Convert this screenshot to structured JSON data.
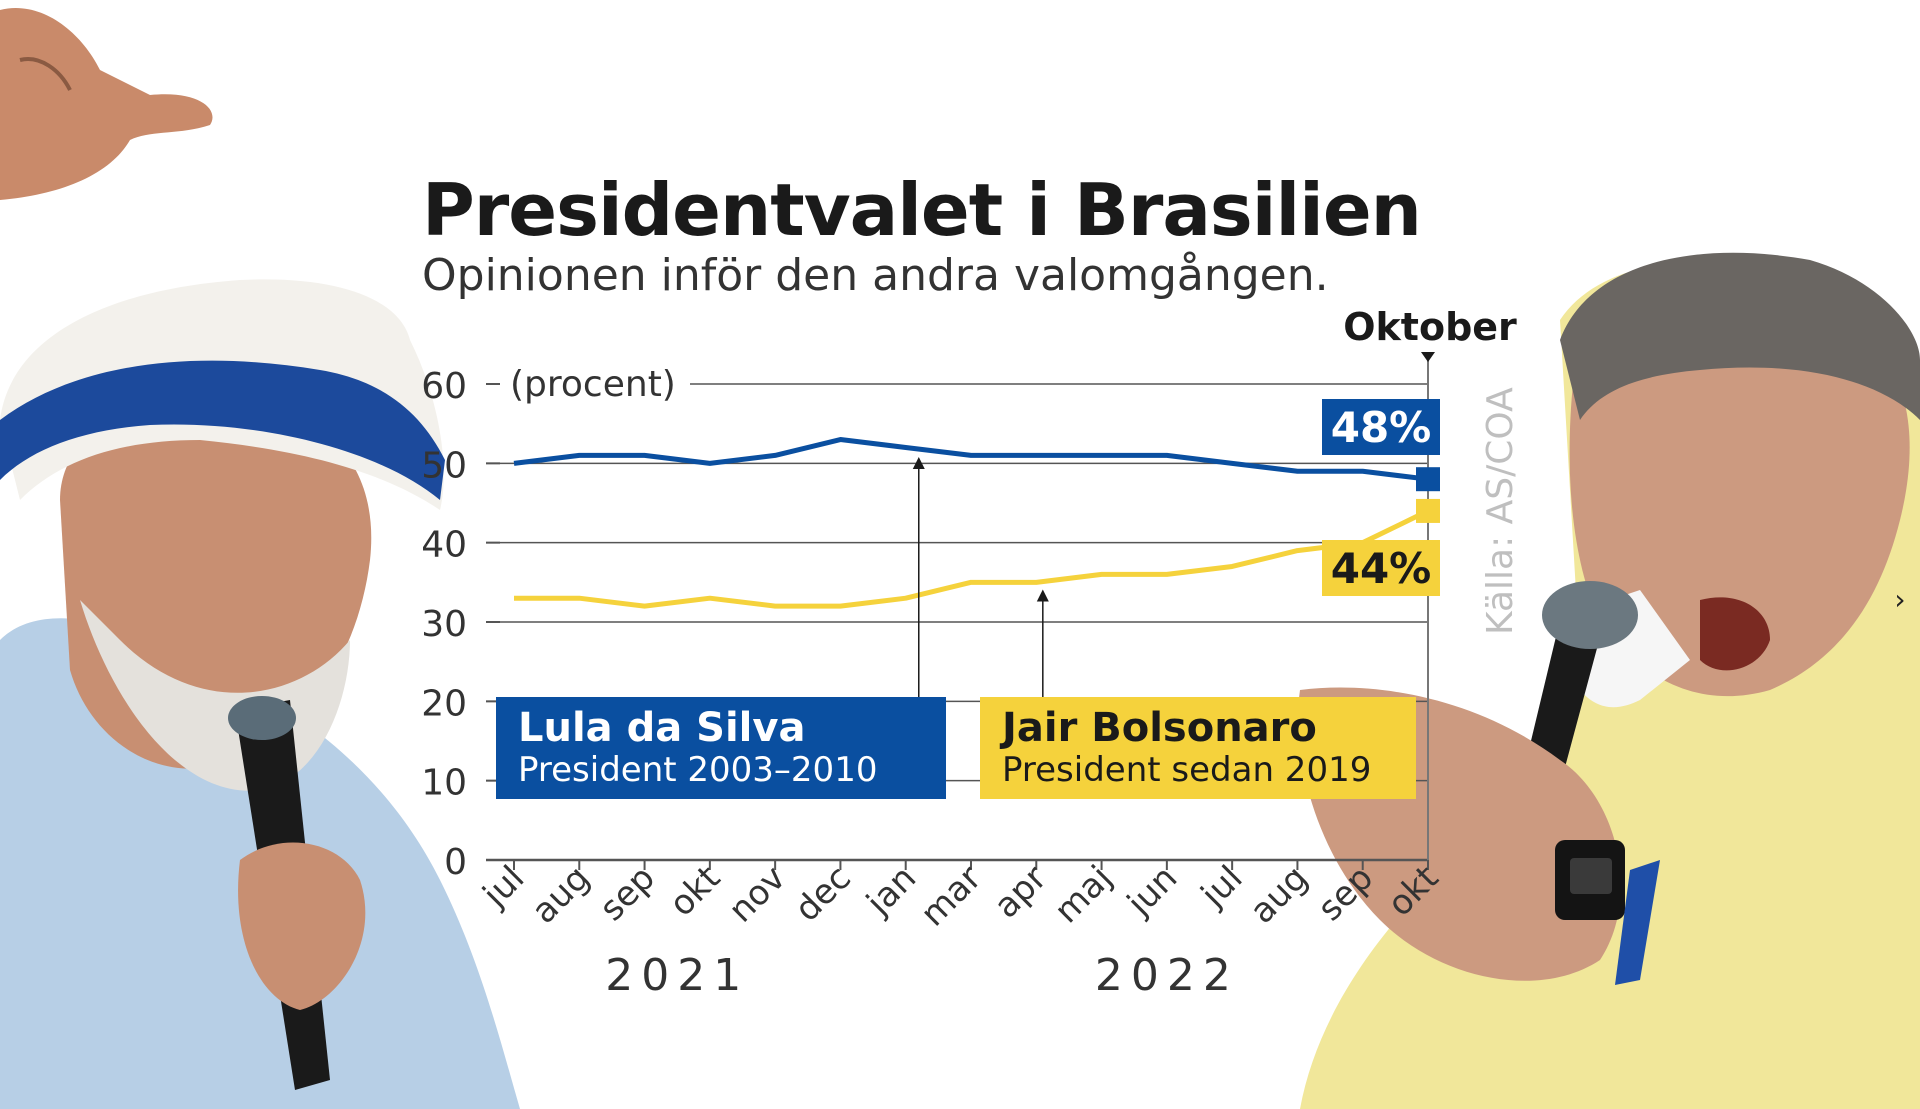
{
  "title": "Presidentvalet i Brasilien",
  "subtitle": "Opinionen inför den andra valomgången.",
  "source": "Källa: AS/COA",
  "colors": {
    "lula": "#0a4fa0",
    "bolsonaro": "#f5d23c",
    "grid": "#333333"
  },
  "nav": {
    "prev_icon": "chevron-left-icon",
    "next_icon": "chevron-right-icon",
    "prev": "‹",
    "next": "›"
  },
  "chart_data": {
    "type": "line",
    "title": "Presidentvalet i Brasilien",
    "subtitle": "Opinionen inför den andra valomgången.",
    "ylabel": "(procent)",
    "ylim": [
      0,
      60
    ],
    "yticks": [
      0,
      10,
      20,
      30,
      40,
      50,
      60
    ],
    "categories": [
      "jul",
      "aug",
      "sep",
      "okt",
      "nov",
      "dec",
      "jan",
      "mar",
      "apr",
      "maj",
      "jun",
      "jul",
      "aug",
      "sep",
      "okt"
    ],
    "year_labels": [
      {
        "label": "2021",
        "from": 0,
        "to": 5
      },
      {
        "label": "2022",
        "from": 6,
        "to": 14
      }
    ],
    "marker_label": "Oktober",
    "grid": true,
    "series": [
      {
        "name": "Lula da Silva",
        "description": "President 2003–2010",
        "color": "#0a4fa0",
        "values": [
          50,
          51,
          51,
          50,
          51,
          53,
          52,
          51,
          51,
          51,
          51,
          50,
          49,
          49,
          48
        ],
        "end_label": "48%",
        "annotation_index": 6.2
      },
      {
        "name": "Jair Bolsonaro",
        "description": "President sedan 2019",
        "color": "#f5d23c",
        "values": [
          33,
          33,
          32,
          33,
          32,
          32,
          33,
          35,
          35,
          36,
          36,
          37,
          39,
          40,
          44
        ],
        "end_label": "44%",
        "annotation_index": 8.1
      }
    ],
    "source": "Källa: AS/COA"
  }
}
